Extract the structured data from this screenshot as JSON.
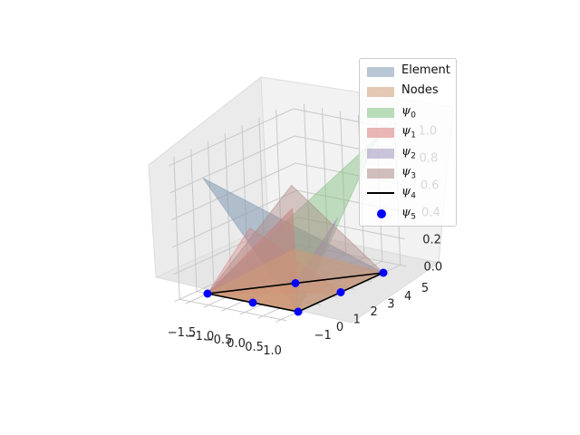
{
  "chart_data": {
    "type": "surface3d",
    "legend_placement": "upper-right",
    "legend": [
      {
        "label": "Element",
        "kind": "patch",
        "color": "#7f99b0"
      },
      {
        "label": "Nodes",
        "kind": "patch",
        "color": "#d09a76"
      },
      {
        "label": "ψ",
        "sub": "0",
        "kind": "patch",
        "color": "#7fbf7f"
      },
      {
        "label": "ψ",
        "sub": "1",
        "kind": "patch",
        "color": "#d87a7a"
      },
      {
        "label": "ψ",
        "sub": "2",
        "kind": "patch",
        "color": "#a393bf"
      },
      {
        "label": "ψ",
        "sub": "3",
        "kind": "patch",
        "color": "#ad8a86"
      },
      {
        "label": "ψ",
        "sub": "4",
        "kind": "line",
        "color": "#000000"
      },
      {
        "label": "ψ",
        "sub": "5",
        "kind": "dot",
        "color": "#0000ff"
      }
    ],
    "xlim": [
      -1.5,
      1.0
    ],
    "ylim": [
      -1,
      5
    ],
    "zlim": [
      0.0,
      1.0
    ],
    "x_ticks": [
      "−1.5",
      "−1.0",
      "−0.5",
      "0.0",
      "0.5",
      "1.0"
    ],
    "y_ticks": [
      "−1",
      "0",
      "1",
      "2",
      "3",
      "4",
      "5"
    ],
    "z_ticks": [
      "0.0",
      "0.2",
      "0.4",
      "0.6",
      "0.8",
      "1.0"
    ],
    "grid": true,
    "nodes": [
      {
        "x": -1.5,
        "y": 0,
        "z": 0
      },
      {
        "x": 1.0,
        "y": 0,
        "z": 0
      },
      {
        "x": 1.0,
        "y": 5,
        "z": 0
      },
      {
        "x": -0.25,
        "y": 0,
        "z": 0
      },
      {
        "x": 1.0,
        "y": 2.5,
        "z": 0
      },
      {
        "x": -0.25,
        "y": 2.5,
        "z": 0
      }
    ],
    "element_triangle": [
      0,
      1,
      2
    ]
  }
}
